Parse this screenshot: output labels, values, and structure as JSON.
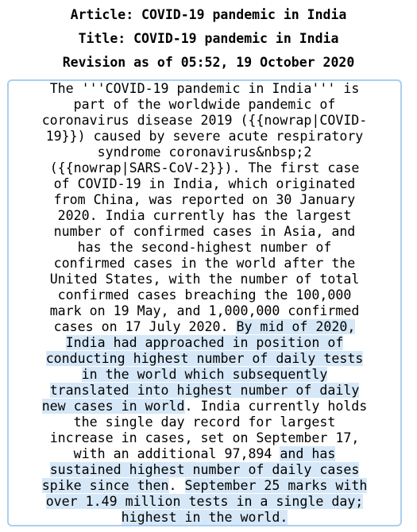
{
  "header": {
    "article": "Article: COVID-19 pandemic in India",
    "title": "Title: COVID-19 pandemic in India",
    "revision": "Revision as of 05:52, 19 October 2020"
  },
  "content": {
    "lines": [
      {
        "segments": [
          {
            "text": "The '''COVID-19 pandemic in India''' is",
            "highlight": false
          }
        ]
      },
      {
        "segments": [
          {
            "text": "part of the worldwide pandemic of",
            "highlight": false
          }
        ]
      },
      {
        "segments": [
          {
            "text": "coronavirus disease 2019 ({{nowrap|COVID-",
            "highlight": false
          }
        ]
      },
      {
        "segments": [
          {
            "text": "19}}) caused by severe acute respiratory",
            "highlight": false
          }
        ]
      },
      {
        "segments": [
          {
            "text": "syndrome coronavirus&nbsp;2",
            "highlight": false
          }
        ]
      },
      {
        "segments": [
          {
            "text": "({{nowrap|SARS-CoV-2}}). The first case",
            "highlight": false
          }
        ]
      },
      {
        "segments": [
          {
            "text": "of COVID-19 in India, which originated",
            "highlight": false
          }
        ]
      },
      {
        "segments": [
          {
            "text": "from China, was reported on 30 January",
            "highlight": false
          }
        ]
      },
      {
        "segments": [
          {
            "text": "2020. India currently has the largest",
            "highlight": false
          }
        ]
      },
      {
        "segments": [
          {
            "text": "number of confirmed cases in Asia, and",
            "highlight": false
          }
        ]
      },
      {
        "segments": [
          {
            "text": "has the second-highest number of",
            "highlight": false
          }
        ]
      },
      {
        "segments": [
          {
            "text": "confirmed cases in the world after the",
            "highlight": false
          }
        ]
      },
      {
        "segments": [
          {
            "text": "United States, with the number of total",
            "highlight": false
          }
        ]
      },
      {
        "segments": [
          {
            "text": "confirmed cases breaching the 100,000",
            "highlight": false
          }
        ]
      },
      {
        "segments": [
          {
            "text": "mark on 19 May, and 1,000,000 confirmed",
            "highlight": false
          }
        ]
      },
      {
        "segments": [
          {
            "text": "cases on 17 July 2020. ",
            "highlight": false
          },
          {
            "text": "By mid of 2020,",
            "highlight": true
          }
        ]
      },
      {
        "segments": [
          {
            "text": "India had approached in position of",
            "highlight": true
          }
        ]
      },
      {
        "segments": [
          {
            "text": "conducting highest number of daily tests",
            "highlight": true
          }
        ]
      },
      {
        "segments": [
          {
            "text": "in the world which subsequently",
            "highlight": true
          }
        ]
      },
      {
        "segments": [
          {
            "text": "translated into highest number of daily",
            "highlight": true
          }
        ]
      },
      {
        "segments": [
          {
            "text": "new cases in world",
            "highlight": true
          },
          {
            "text": ". India currently holds",
            "highlight": false
          }
        ]
      },
      {
        "segments": [
          {
            "text": "the single day record for largest",
            "highlight": false
          }
        ]
      },
      {
        "segments": [
          {
            "text": "increase in cases, set on September 17,",
            "highlight": false
          }
        ]
      },
      {
        "segments": [
          {
            "text": "with an additional 97,894 ",
            "highlight": false
          },
          {
            "text": "and has",
            "highlight": true
          }
        ]
      },
      {
        "segments": [
          {
            "text": "sustained highest number of daily cases",
            "highlight": true
          }
        ]
      },
      {
        "segments": [
          {
            "text": "spike since then",
            "highlight": true
          },
          {
            "text": ". ",
            "highlight": false
          },
          {
            "text": "September 25 marks with",
            "highlight": true
          }
        ]
      },
      {
        "segments": [
          {
            "text": "over 1.49 million tests in a single day;",
            "highlight": true
          }
        ]
      },
      {
        "segments": [
          {
            "text": "highest in the world.",
            "highlight": true
          }
        ]
      }
    ]
  }
}
